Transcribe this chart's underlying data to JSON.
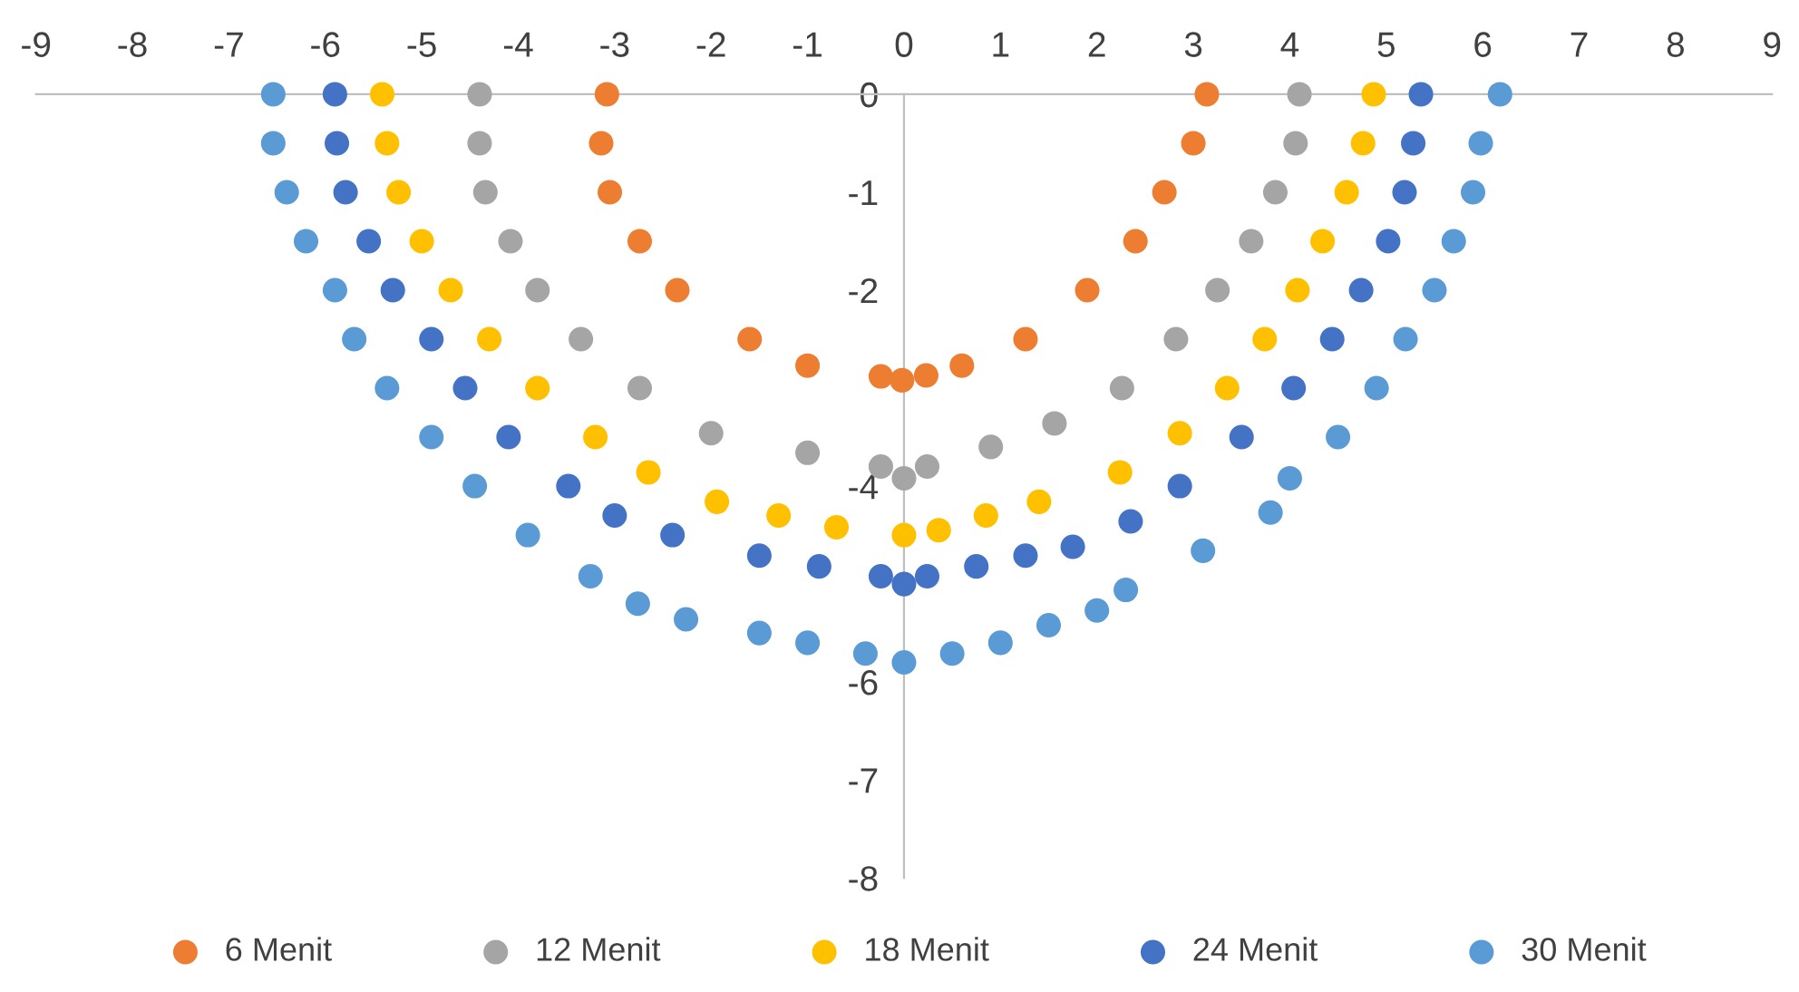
{
  "chart_data": {
    "type": "scatter",
    "xlim": [
      -9,
      9
    ],
    "ylim": [
      -8,
      0
    ],
    "xticks": [
      -9,
      -8,
      -7,
      -6,
      -5,
      -4,
      -3,
      -2,
      -1,
      0,
      1,
      2,
      3,
      4,
      5,
      6,
      7,
      8,
      9
    ],
    "yticks": [
      -8,
      -7,
      -6,
      -4,
      -2,
      -1,
      0
    ],
    "grid": false,
    "legend": "bottom",
    "marker": "circle",
    "series": [
      {
        "name": "6 Menit",
        "color": "#ed7d31",
        "x": [
          -3.08,
          -3.14,
          -3.05,
          -2.74,
          -2.35,
          -1.6,
          -1.0,
          -0.24,
          -0.02,
          0.23,
          0.6,
          1.26,
          1.9,
          2.4,
          2.7,
          3.0,
          3.14
        ],
        "values": [
          0,
          -0.5,
          -1,
          -1.5,
          -2,
          -2.5,
          -2.77,
          -2.88,
          -2.92,
          -2.87,
          -2.77,
          -2.5,
          -2,
          -1.5,
          -1,
          -0.5,
          0
        ]
      },
      {
        "name": "12 Menit",
        "color": "#a5a5a5",
        "x": [
          -4.4,
          -4.4,
          -4.34,
          -4.08,
          -3.8,
          -3.35,
          -2.74,
          -2.0,
          -1.0,
          -0.24,
          0,
          0.24,
          0.9,
          1.56,
          2.26,
          2.82,
          3.25,
          3.6,
          3.85,
          4.06,
          4.1
        ],
        "values": [
          0,
          -0.5,
          -1,
          -1.5,
          -2,
          -2.5,
          -3,
          -3.46,
          -3.66,
          -3.8,
          -3.92,
          -3.8,
          -3.6,
          -3.36,
          -3,
          -2.5,
          -2,
          -1.5,
          -1,
          -0.5,
          0
        ]
      },
      {
        "name": "18 Menit",
        "color": "#ffc000",
        "x": [
          -5.41,
          -5.36,
          -5.24,
          -5.0,
          -4.7,
          -4.3,
          -3.8,
          -3.2,
          -2.65,
          -1.94,
          -1.3,
          -0.7,
          0,
          0.36,
          0.85,
          1.4,
          2.24,
          2.86,
          3.35,
          3.74,
          4.08,
          4.34,
          4.59,
          4.76,
          4.87
        ],
        "values": [
          0,
          -0.5,
          -1,
          -1.5,
          -2,
          -2.5,
          -3,
          -3.5,
          -3.86,
          -4.16,
          -4.3,
          -4.42,
          -4.5,
          -4.45,
          -4.3,
          -4.16,
          -3.86,
          -3.46,
          -3,
          -2.5,
          -2,
          -1.5,
          -1,
          -0.5,
          0
        ]
      },
      {
        "name": "24 Menit",
        "color": "#4472c4",
        "x": [
          -5.9,
          -5.88,
          -5.79,
          -5.55,
          -5.3,
          -4.9,
          -4.55,
          -4.1,
          -3.48,
          -3.0,
          -2.4,
          -1.5,
          -0.88,
          -0.24,
          0,
          0.24,
          0.75,
          1.26,
          1.75,
          2.35,
          2.86,
          3.5,
          4.04,
          4.44,
          4.74,
          5.02,
          5.19,
          5.28,
          5.36
        ],
        "values": [
          0,
          -0.5,
          -1,
          -1.5,
          -2,
          -2.5,
          -3,
          -3.5,
          -4,
          -4.3,
          -4.5,
          -4.71,
          -4.82,
          -4.92,
          -5,
          -4.92,
          -4.82,
          -4.71,
          -4.62,
          -4.36,
          -4,
          -3.5,
          -3,
          -2.5,
          -2,
          -1.5,
          -1,
          -0.5,
          0
        ]
      },
      {
        "name": "30 Menit",
        "color": "#5b9bd5",
        "x": [
          -6.54,
          -6.54,
          -6.4,
          -6.2,
          -5.9,
          -5.7,
          -5.36,
          -4.9,
          -4.45,
          -3.9,
          -3.25,
          -2.76,
          -2.26,
          -1.5,
          -1.0,
          -0.4,
          0,
          0.5,
          1.0,
          1.5,
          2.0,
          2.3,
          3.1,
          3.8,
          4.0,
          4.5,
          4.9,
          5.2,
          5.5,
          5.7,
          5.9,
          5.98,
          6.18
        ],
        "values": [
          0,
          -0.5,
          -1,
          -1.5,
          -2,
          -2.5,
          -3,
          -3.5,
          -4,
          -4.5,
          -4.92,
          -5.2,
          -5.36,
          -5.5,
          -5.6,
          -5.71,
          -5.8,
          -5.71,
          -5.6,
          -5.42,
          -5.27,
          -5.06,
          -4.66,
          -4.27,
          -3.92,
          -3.5,
          -3,
          -2.5,
          -2,
          -1.5,
          -1,
          -0.5,
          0
        ]
      }
    ]
  }
}
